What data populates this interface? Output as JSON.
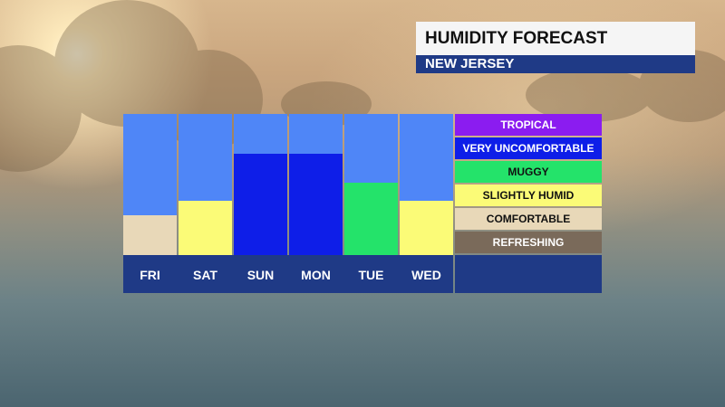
{
  "header": {
    "title": "HUMIDITY FORECAST",
    "subtitle": "NEW JERSEY"
  },
  "colors": {
    "sky": "#4f86f7",
    "axis_bar": "#1f3a86",
    "tropical": "#8b1cf0",
    "very_uncomfortable": "#0e1ee8",
    "muggy": "#24e36a",
    "slightly_humid": "#fbfb77",
    "comfortable": "#e8d8b8",
    "refreshing": "#7a6a5a"
  },
  "legend": [
    {
      "label": "TROPICAL",
      "color": "#8b1cf0",
      "text_color": "#ffffff"
    },
    {
      "label": "VERY UNCOMFORTABLE",
      "color": "#0e1ee8",
      "text_color": "#ffffff"
    },
    {
      "label": "MUGGY",
      "color": "#24e36a",
      "text_color": "#111111"
    },
    {
      "label": "SLIGHTLY HUMID",
      "color": "#fbfb77",
      "text_color": "#111111"
    },
    {
      "label": "COMFORTABLE",
      "color": "#e8d8b8",
      "text_color": "#111111"
    },
    {
      "label": "REFRESHING",
      "color": "#7a6a5a",
      "text_color": "#ffffff"
    }
  ],
  "chart_data": {
    "type": "bar",
    "categories": [
      "FRI",
      "SAT",
      "SUN",
      "MON",
      "TUE",
      "WED"
    ],
    "values": [
      2,
      3,
      5,
      5,
      4,
      3
    ],
    "levels": [
      "COMFORTABLE",
      "SLIGHTLY HUMID",
      "VERY UNCOMFORTABLE",
      "VERY UNCOMFORTABLE",
      "MUGGY",
      "SLIGHTLY HUMID"
    ],
    "ylim": [
      0,
      6
    ],
    "grid": false,
    "legend_position": "right"
  }
}
